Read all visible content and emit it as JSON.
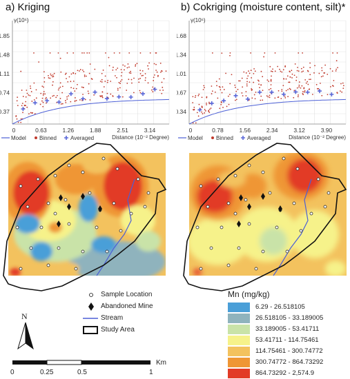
{
  "panels": [
    {
      "title": "a) Kriging",
      "y_axis_label": "γ(10⁶)",
      "y_ticks": [
        "1.85",
        "1.48",
        "1.11",
        "0.74",
        "0.37"
      ],
      "x_ticks": [
        "0",
        "0.63",
        "1.26",
        "1.88",
        "2.51",
        "3.14"
      ],
      "x_axis_label": "Distance (10⁻² Degree)",
      "legend": {
        "model": "Model",
        "binned": "Binned",
        "averaged": "Averaged"
      }
    },
    {
      "title": "b) Cokriging (moisture content, silt)*",
      "y_axis_label": "γ(10⁶)",
      "y_ticks": [
        "1.68",
        "1.34",
        "1.01",
        "0.67",
        "0.34"
      ],
      "x_ticks": [
        "0",
        "0.78",
        "1.56",
        "2.34",
        "3.12",
        "3.90"
      ],
      "x_axis_label": "Distance (10⁻² Degree)",
      "legend": {
        "model": "Model",
        "binned": "Binned",
        "averaged": "Averaged"
      }
    }
  ],
  "legend": {
    "sample_location": "Sample Location",
    "abandoned_mine": "Abandoned Mine",
    "stream": "Stream",
    "study_area": "Study Area",
    "north": "N"
  },
  "scale_bar": {
    "ticks": [
      "0",
      "0.25",
      "0.5",
      "1"
    ],
    "unit": "Km"
  },
  "mn_legend": {
    "title": "Mn (mg/kg)",
    "classes": [
      {
        "label": "6.29 - 26.518105",
        "color": "#4a9fd8"
      },
      {
        "label": "26.518105 - 33.189005",
        "color": "#8fb3bd"
      },
      {
        "label": "33.189005 - 53.41711",
        "color": "#c9e3a8"
      },
      {
        "label": "53.41711 - 114.75461",
        "color": "#f6f28a"
      },
      {
        "label": "114.75461 - 300.74772",
        "color": "#f3c25e"
      },
      {
        "label": "300.74772 - 864.73292",
        "color": "#ef9634"
      },
      {
        "label": "864.73292 - 2,574.9",
        "color": "#e23b26"
      }
    ]
  }
}
